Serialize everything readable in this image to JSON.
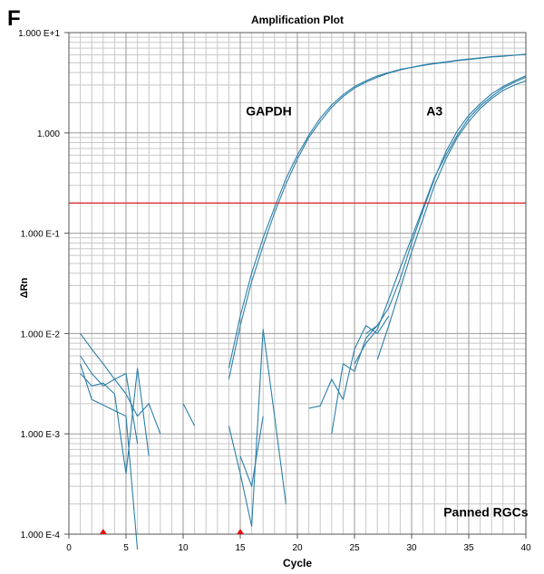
{
  "panel_label": "F",
  "chart_data": {
    "type": "line",
    "title": "Amplification Plot",
    "xlabel": "Cycle",
    "ylabel": "ΔRn",
    "xlim": [
      0,
      40
    ],
    "ylim": [
      0.0001,
      10
    ],
    "y_scale": "log",
    "grid": true,
    "x_ticks": [
      0,
      5,
      10,
      15,
      20,
      25,
      30,
      35,
      40
    ],
    "x_tick_labels": [
      "0",
      "5",
      "10",
      "15",
      "20",
      "25",
      "30",
      "35",
      "40"
    ],
    "y_ticks": [
      10,
      1,
      0.1,
      0.01,
      0.001,
      0.0001
    ],
    "y_tick_labels": [
      "1.000 E+1",
      "1.000",
      "1.000 E-1",
      "1.000 E-2",
      "1.000 E-3",
      "1.000 E-4"
    ],
    "threshold": {
      "value": 0.2,
      "color": "#dd2222"
    },
    "baseline_markers": [
      3,
      15
    ],
    "annotations": [
      {
        "text": "GAPDH",
        "x": 17.5,
        "y": 1.5
      },
      {
        "text": "A3",
        "x": 32,
        "y": 1.5
      },
      {
        "text": "Panned RGCs",
        "x": 36.5,
        "y": 0.00015
      }
    ],
    "series_color": "#2b7fa8",
    "series": [
      {
        "x": [
          14,
          15,
          16,
          17,
          18,
          19,
          20,
          21,
          22,
          23,
          24,
          25,
          26,
          27,
          28,
          29,
          30,
          31,
          32,
          33,
          34,
          35,
          36,
          37,
          38,
          39,
          40
        ],
        "values": [
          0.0045,
          0.015,
          0.04,
          0.09,
          0.18,
          0.35,
          0.6,
          0.95,
          1.4,
          1.9,
          2.4,
          2.9,
          3.3,
          3.7,
          4.0,
          4.3,
          4.5,
          4.75,
          4.95,
          5.1,
          5.3,
          5.45,
          5.6,
          5.75,
          5.85,
          5.95,
          6.05
        ]
      },
      {
        "x": [
          14,
          15,
          16,
          17,
          18,
          19,
          20,
          21,
          22,
          23,
          24,
          25,
          26,
          27,
          28,
          29,
          30,
          31,
          32,
          33,
          34,
          35,
          36,
          37,
          38,
          39,
          40
        ],
        "values": [
          0.0035,
          0.012,
          0.033,
          0.075,
          0.16,
          0.31,
          0.55,
          0.9,
          1.3,
          1.8,
          2.3,
          2.8,
          3.2,
          3.6,
          3.95,
          4.25,
          4.5,
          4.7,
          4.9,
          5.05,
          5.25,
          5.4,
          5.55,
          5.7,
          5.8,
          5.95,
          6.1
        ]
      },
      {
        "x": [
          27,
          28,
          29,
          30,
          31,
          32,
          33,
          34,
          35,
          36,
          37,
          38,
          39,
          40
        ],
        "values": [
          0.0055,
          0.012,
          0.028,
          0.065,
          0.14,
          0.3,
          0.55,
          0.9,
          1.3,
          1.75,
          2.2,
          2.65,
          3.0,
          3.3
        ]
      },
      {
        "x": [
          26,
          27,
          28,
          29,
          30,
          31,
          32,
          33,
          34,
          35,
          36,
          37,
          38,
          39,
          40
        ],
        "values": [
          0.01,
          0.012,
          0.018,
          0.035,
          0.08,
          0.17,
          0.35,
          0.65,
          1.05,
          1.5,
          1.95,
          2.45,
          2.9,
          3.3,
          3.7
        ]
      },
      {
        "x": [
          25,
          26,
          27,
          28,
          29,
          30,
          31,
          32,
          33,
          34,
          35,
          36,
          37,
          38,
          39,
          40
        ],
        "values": [
          0.005,
          0.008,
          0.011,
          0.022,
          0.045,
          0.09,
          0.18,
          0.36,
          0.6,
          0.95,
          1.4,
          1.85,
          2.3,
          2.8,
          3.2,
          3.6
        ]
      },
      {
        "x": [
          1,
          2,
          3,
          4,
          5,
          6,
          7,
          8
        ],
        "values": [
          0.01,
          0.007,
          0.005,
          0.0035,
          0.0025,
          0.0015,
          0.002,
          0.001
        ]
      },
      {
        "x": [
          1,
          2,
          3,
          4,
          5,
          6
        ],
        "values": [
          0.006,
          0.004,
          0.003,
          0.0035,
          0.004,
          0.0008
        ]
      },
      {
        "x": [
          1,
          2,
          3,
          4,
          5,
          6,
          7
        ],
        "values": [
          0.004,
          0.003,
          0.0032,
          0.0025,
          0.0004,
          0.0045,
          0.0006
        ]
      },
      {
        "x": [
          1,
          2,
          5,
          6
        ],
        "values": [
          0.005,
          0.0022,
          0.0015,
          7e-05
        ]
      },
      {
        "x": [
          10,
          11
        ],
        "values": [
          0.002,
          0.0012
        ]
      },
      {
        "x": [
          14,
          15,
          16,
          17,
          18,
          19
        ],
        "values": [
          0.0012,
          0.0004,
          0.00012,
          0.011,
          0.0015,
          0.0002
        ]
      },
      {
        "x": [
          15,
          16,
          17
        ],
        "values": [
          0.0006,
          0.0003,
          0.0015
        ]
      },
      {
        "x": [
          21,
          22,
          23,
          24,
          25,
          26,
          27,
          28
        ],
        "values": [
          0.0018,
          0.0019,
          0.0035,
          0.0022,
          0.007,
          0.012,
          0.01,
          0.015
        ]
      },
      {
        "x": [
          23,
          24,
          25,
          26,
          27
        ],
        "values": [
          0.001,
          0.005,
          0.0042,
          0.009,
          0.012
        ]
      }
    ]
  }
}
